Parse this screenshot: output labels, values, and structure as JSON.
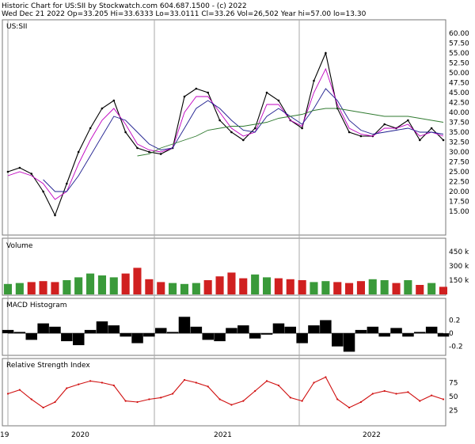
{
  "header": {
    "line1": "Historic Chart for US:SII by Stockwatch.com 604.687.1500 - (c) 2022",
    "line2": "Wed Dec 21 2022   Op=33.205   Hi=33.6333   Lo=33.0111   Cl=33.26   Vol=26,502   Year hi=57.00   lo=13.30"
  },
  "x_axis": {
    "labels": [
      "19",
      "2020",
      "2021",
      "2022"
    ]
  },
  "chart_data": [
    {
      "type": "line",
      "title": "US:SII",
      "ylim": [
        10,
        62
      ],
      "yticks": [
        "60.00",
        "57.50",
        "55.00",
        "52.50",
        "50.00",
        "47.50",
        "45.00",
        "42.50",
        "40.00",
        "37.50",
        "35.00",
        "32.50",
        "30.00",
        "27.50",
        "25.00",
        "22.50",
        "20.00",
        "17.50",
        "15.00"
      ],
      "x": [
        "2019-11",
        "2019-12",
        "2020-01",
        "2020-02",
        "2020-03",
        "2020-04",
        "2020-05",
        "2020-06",
        "2020-07",
        "2020-08",
        "2020-09",
        "2020-10",
        "2020-11",
        "2020-12",
        "2021-01",
        "2021-02",
        "2021-03",
        "2021-04",
        "2021-05",
        "2021-06",
        "2021-07",
        "2021-08",
        "2021-09",
        "2021-10",
        "2021-11",
        "2021-12",
        "2022-01",
        "2022-02",
        "2022-03",
        "2022-04",
        "2022-05",
        "2022-06",
        "2022-07",
        "2022-08",
        "2022-09",
        "2022-10",
        "2022-11",
        "2022-12"
      ],
      "series": [
        {
          "values": [
            25,
            26,
            24.5,
            20,
            14,
            22,
            30,
            36,
            41,
            43,
            35,
            31,
            30,
            29.5,
            31,
            44,
            46,
            45,
            38,
            35,
            33,
            36,
            45,
            43,
            38,
            36,
            48,
            55,
            41,
            35,
            34,
            34,
            37,
            36,
            38,
            33,
            36,
            33
          ],
          "color": "#000000"
        },
        {
          "values": [
            24,
            25,
            24,
            22,
            18,
            20,
            27,
            33,
            38,
            41,
            37,
            32,
            30.5,
            30,
            31,
            40,
            44,
            44,
            40,
            36,
            34,
            35,
            42,
            42,
            38,
            36.5,
            45,
            51,
            42,
            36,
            34.5,
            34,
            36,
            36,
            37,
            34,
            35,
            34
          ],
          "color": "#c000c0"
        },
        {
          "values": [
            null,
            null,
            null,
            23,
            20,
            20,
            24,
            29,
            34,
            39,
            38,
            35,
            32,
            30.5,
            31,
            36,
            41,
            43,
            41,
            38,
            35.5,
            35,
            39,
            41,
            39,
            37,
            41,
            46,
            43,
            38,
            35.5,
            34.5,
            35,
            35.5,
            36,
            35,
            35,
            34.5
          ],
          "color": "#1f1f8f"
        },
        {
          "values": [
            null,
            null,
            null,
            null,
            null,
            null,
            null,
            null,
            null,
            null,
            null,
            29,
            29.5,
            31,
            32,
            33,
            34,
            35.5,
            36,
            36.5,
            36.5,
            37,
            37.5,
            38.5,
            39,
            39.5,
            40.5,
            41,
            41,
            40.5,
            40,
            39.5,
            39,
            39,
            39,
            38.5,
            38,
            37.5
          ],
          "color": "#2f7a2f"
        }
      ]
    },
    {
      "type": "bar",
      "title": "Volume",
      "ylim": [
        0,
        500
      ],
      "yticks": [
        "450 k",
        "300 k",
        "150 k"
      ],
      "values": [
        110,
        120,
        130,
        140,
        130,
        150,
        180,
        220,
        200,
        180,
        220,
        280,
        160,
        130,
        120,
        110,
        120,
        150,
        190,
        230,
        170,
        210,
        180,
        170,
        160,
        150,
        130,
        140,
        130,
        120,
        140,
        160,
        150,
        120,
        150,
        100,
        120,
        80
      ]
    },
    {
      "type": "area",
      "title": "MACD Histogram",
      "ylim": [
        -0.3,
        0.35
      ],
      "yticks": [
        "0.2",
        "0",
        "-0.2"
      ],
      "values": [
        0.05,
        0.02,
        -0.1,
        0.15,
        0.1,
        -0.12,
        -0.18,
        0.05,
        0.18,
        0.12,
        -0.05,
        -0.15,
        -0.05,
        0.08,
        0.02,
        0.25,
        0.1,
        -0.1,
        -0.12,
        0.08,
        0.12,
        -0.08,
        -0.02,
        0.15,
        0.1,
        -0.15,
        0.12,
        0.2,
        -0.2,
        -0.28,
        0.05,
        0.1,
        -0.05,
        0.08,
        -0.05,
        0.02,
        0.1,
        -0.05
      ]
    },
    {
      "type": "line",
      "title": "Relative Strength Index",
      "ylim": [
        0,
        100
      ],
      "yticks": [
        "75",
        "50",
        "25"
      ],
      "values": [
        55,
        62,
        45,
        30,
        40,
        65,
        72,
        78,
        75,
        70,
        42,
        40,
        45,
        48,
        55,
        80,
        75,
        68,
        45,
        35,
        42,
        60,
        78,
        70,
        48,
        42,
        75,
        85,
        45,
        30,
        40,
        55,
        60,
        55,
        58,
        42,
        52,
        45
      ]
    }
  ]
}
